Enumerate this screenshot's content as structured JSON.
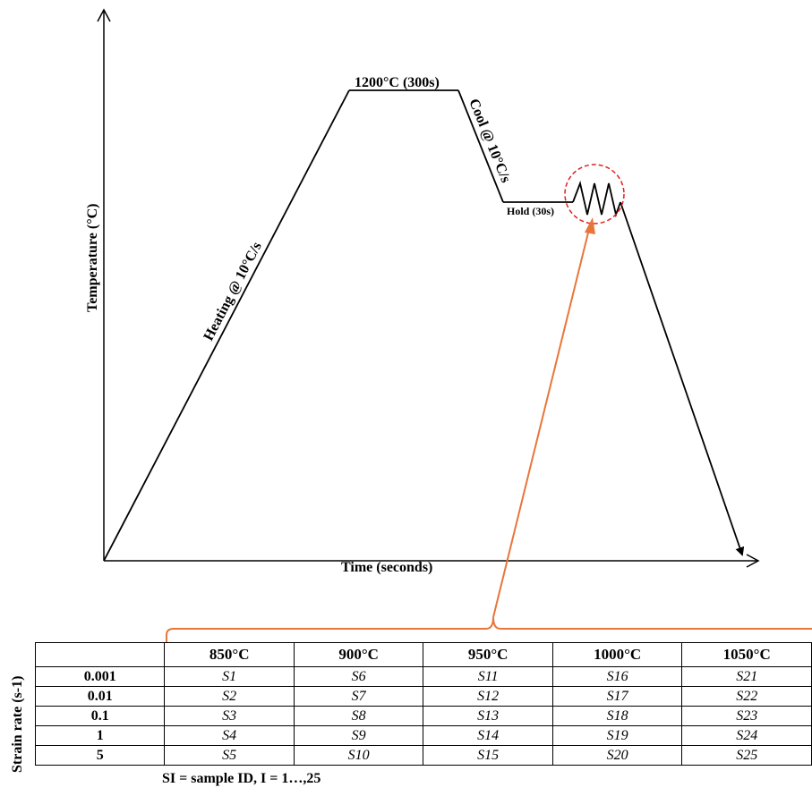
{
  "diagram": {
    "y_axis_label": "Temperature (°C)",
    "x_axis_label": "Time (seconds)",
    "heating_label": "Heating @ 10°C/s",
    "peak_label": "1200°C (300s)",
    "cool_label": "Cool @ 10°C/s",
    "hold_label": "Hold (30s)",
    "colors": {
      "line": "#000000",
      "arrow": "#e8763a",
      "circle": "#e02020"
    }
  },
  "table": {
    "y_label": "Strain rate (s-1)",
    "columns": [
      "",
      "850°C",
      "900°C",
      "950°C",
      "1000°C",
      "1050°C"
    ],
    "rows": [
      {
        "rate": "0.001",
        "cells": [
          "S1",
          "S6",
          "S11",
          "S16",
          "S21"
        ]
      },
      {
        "rate": "0.01",
        "cells": [
          "S2",
          "S7",
          "S12",
          "S17",
          "S22"
        ]
      },
      {
        "rate": "0.1",
        "cells": [
          "S3",
          "S8",
          "S13",
          "S18",
          "S23"
        ]
      },
      {
        "rate": "1",
        "cells": [
          "S4",
          "S9",
          "S14",
          "S19",
          "S24"
        ]
      },
      {
        "rate": "5",
        "cells": [
          "S5",
          "S10",
          "S15",
          "S20",
          "S25"
        ]
      }
    ],
    "footnote": "SI = sample ID, I = 1…,25"
  }
}
